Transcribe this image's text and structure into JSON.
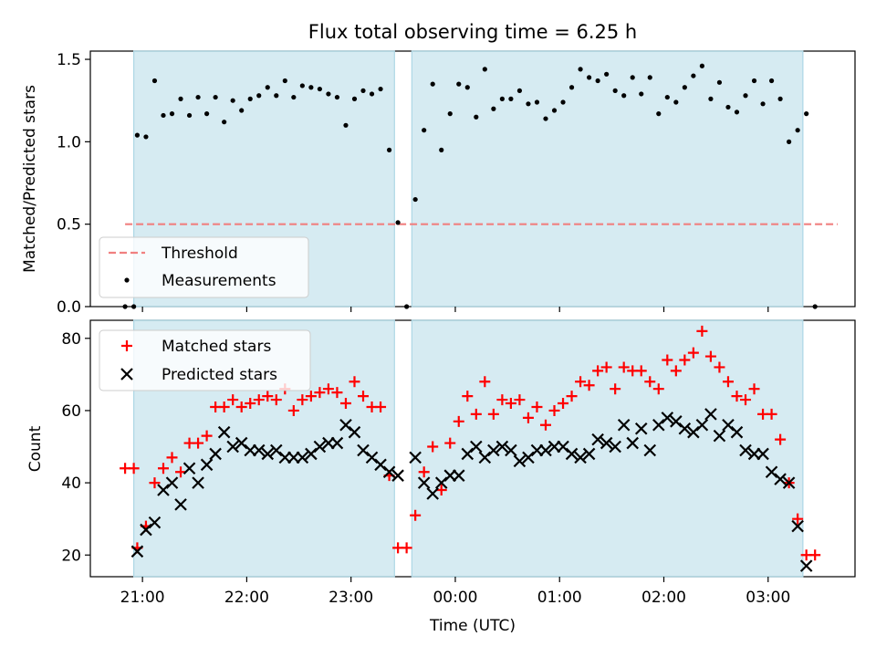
{
  "chart_data": [
    {
      "type": "scatter",
      "title": "Flux total observing time = 6.25 h",
      "ylabel": "Matched/Predicted stars",
      "xlim": [
        "20:30",
        "03:50"
      ],
      "ylim": [
        0,
        1.55
      ],
      "yticks": [
        "0.0",
        "0.5",
        "1.0",
        "1.5"
      ],
      "ytick_values": [
        0,
        0.5,
        1.0,
        1.5
      ],
      "grid": false,
      "legend_position": "lower-left",
      "shaded_spans": [
        [
          "20:55",
          "23:25"
        ],
        [
          "23:35",
          "03:20"
        ]
      ],
      "colors": {
        "shade": "#add8e6",
        "threshold": "#f08080",
        "measurements": "#000000"
      },
      "threshold": {
        "name": "Threshold",
        "value": 0.5,
        "x_range": [
          "20:50",
          "03:40"
        ]
      },
      "series": [
        {
          "name": "Measurements",
          "points": [
            [
              "20:50",
              0
            ],
            [
              "20:55",
              0
            ],
            [
              "20:57",
              1.04
            ],
            [
              "21:02",
              1.03
            ],
            [
              "21:07",
              1.37
            ],
            [
              "21:12",
              1.16
            ],
            [
              "21:17",
              1.17
            ],
            [
              "21:22",
              1.26
            ],
            [
              "21:27",
              1.16
            ],
            [
              "21:32",
              1.27
            ],
            [
              "21:37",
              1.17
            ],
            [
              "21:42",
              1.27
            ],
            [
              "21:47",
              1.12
            ],
            [
              "21:52",
              1.25
            ],
            [
              "21:57",
              1.19
            ],
            [
              "22:02",
              1.26
            ],
            [
              "22:07",
              1.28
            ],
            [
              "22:12",
              1.33
            ],
            [
              "22:17",
              1.28
            ],
            [
              "22:22",
              1.37
            ],
            [
              "22:27",
              1.27
            ],
            [
              "22:32",
              1.34
            ],
            [
              "22:37",
              1.33
            ],
            [
              "22:42",
              1.32
            ],
            [
              "22:47",
              1.29
            ],
            [
              "22:52",
              1.27
            ],
            [
              "22:57",
              1.1
            ],
            [
              "23:02",
              1.26
            ],
            [
              "23:07",
              1.31
            ],
            [
              "23:12",
              1.29
            ],
            [
              "23:17",
              1.32
            ],
            [
              "23:22",
              0.95
            ],
            [
              "23:27",
              0.51
            ],
            [
              "23:32",
              0
            ],
            [
              "23:37",
              0.65
            ],
            [
              "23:42",
              1.07
            ],
            [
              "23:47",
              1.35
            ],
            [
              "23:52",
              0.95
            ],
            [
              "23:57",
              1.17
            ],
            [
              "00:02",
              1.35
            ],
            [
              "00:07",
              1.33
            ],
            [
              "00:12",
              1.15
            ],
            [
              "00:17",
              1.44
            ],
            [
              "00:22",
              1.2
            ],
            [
              "00:27",
              1.26
            ],
            [
              "00:32",
              1.26
            ],
            [
              "00:37",
              1.31
            ],
            [
              "00:42",
              1.23
            ],
            [
              "00:47",
              1.24
            ],
            [
              "00:52",
              1.14
            ],
            [
              "00:57",
              1.19
            ],
            [
              "01:02",
              1.24
            ],
            [
              "01:07",
              1.33
            ],
            [
              "01:12",
              1.44
            ],
            [
              "01:17",
              1.39
            ],
            [
              "01:22",
              1.37
            ],
            [
              "01:27",
              1.41
            ],
            [
              "01:32",
              1.31
            ],
            [
              "01:37",
              1.28
            ],
            [
              "01:42",
              1.39
            ],
            [
              "01:47",
              1.29
            ],
            [
              "01:52",
              1.39
            ],
            [
              "01:57",
              1.17
            ],
            [
              "02:02",
              1.27
            ],
            [
              "02:07",
              1.24
            ],
            [
              "02:12",
              1.33
            ],
            [
              "02:17",
              1.4
            ],
            [
              "02:22",
              1.46
            ],
            [
              "02:27",
              1.26
            ],
            [
              "02:32",
              1.36
            ],
            [
              "02:37",
              1.21
            ],
            [
              "02:42",
              1.18
            ],
            [
              "02:47",
              1.28
            ],
            [
              "02:52",
              1.37
            ],
            [
              "02:57",
              1.23
            ],
            [
              "03:02",
              1.37
            ],
            [
              "03:07",
              1.26
            ],
            [
              "03:12",
              1.0
            ],
            [
              "03:17",
              1.07
            ],
            [
              "03:22",
              1.17
            ],
            [
              "03:27",
              0
            ]
          ]
        }
      ]
    },
    {
      "type": "scatter",
      "xlabel": "Time (UTC)",
      "ylabel": "Count",
      "xlim": [
        "20:30",
        "03:50"
      ],
      "ylim": [
        14,
        85
      ],
      "yticks": [
        "20",
        "40",
        "60",
        "80"
      ],
      "ytick_values": [
        20,
        40,
        60,
        80
      ],
      "xticks": [
        "21:00",
        "22:00",
        "23:00",
        "00:00",
        "01:00",
        "02:00",
        "03:00"
      ],
      "grid": false,
      "legend_position": "upper-left",
      "shaded_spans": [
        [
          "20:55",
          "23:25"
        ],
        [
          "23:35",
          "03:20"
        ]
      ],
      "colors": {
        "shade": "#add8e6",
        "matched": "#ff0000",
        "predicted": "#000000"
      },
      "series": [
        {
          "name": "Matched stars",
          "marker": "plus",
          "points": [
            [
              "20:50",
              44
            ],
            [
              "20:55",
              44
            ],
            [
              "20:57",
              22
            ],
            [
              "21:02",
              28
            ],
            [
              "21:07",
              40
            ],
            [
              "21:12",
              44
            ],
            [
              "21:17",
              47
            ],
            [
              "21:22",
              43
            ],
            [
              "21:27",
              51
            ],
            [
              "21:32",
              51
            ],
            [
              "21:37",
              53
            ],
            [
              "21:42",
              61
            ],
            [
              "21:47",
              61
            ],
            [
              "21:52",
              63
            ],
            [
              "21:57",
              61
            ],
            [
              "22:02",
              62
            ],
            [
              "22:07",
              63
            ],
            [
              "22:12",
              64
            ],
            [
              "22:17",
              63
            ],
            [
              "22:22",
              66
            ],
            [
              "22:27",
              60
            ],
            [
              "22:32",
              63
            ],
            [
              "22:37",
              64
            ],
            [
              "22:42",
              65
            ],
            [
              "22:47",
              66
            ],
            [
              "22:52",
              65
            ],
            [
              "22:57",
              62
            ],
            [
              "23:02",
              68
            ],
            [
              "23:07",
              64
            ],
            [
              "23:12",
              61
            ],
            [
              "23:17",
              61
            ],
            [
              "23:22",
              42
            ],
            [
              "23:27",
              22
            ],
            [
              "23:32",
              22
            ],
            [
              "23:37",
              31
            ],
            [
              "23:42",
              43
            ],
            [
              "23:47",
              50
            ],
            [
              "23:52",
              38
            ],
            [
              "23:57",
              51
            ],
            [
              "00:02",
              57
            ],
            [
              "00:07",
              64
            ],
            [
              "00:12",
              59
            ],
            [
              "00:17",
              68
            ],
            [
              "00:22",
              59
            ],
            [
              "00:27",
              63
            ],
            [
              "00:32",
              62
            ],
            [
              "00:37",
              63
            ],
            [
              "00:42",
              58
            ],
            [
              "00:47",
              61
            ],
            [
              "00:52",
              56
            ],
            [
              "00:57",
              60
            ],
            [
              "01:02",
              62
            ],
            [
              "01:07",
              64
            ],
            [
              "01:12",
              68
            ],
            [
              "01:17",
              67
            ],
            [
              "01:22",
              71
            ],
            [
              "01:27",
              72
            ],
            [
              "01:32",
              66
            ],
            [
              "01:37",
              72
            ],
            [
              "01:42",
              71
            ],
            [
              "01:47",
              71
            ],
            [
              "01:52",
              68
            ],
            [
              "01:57",
              66
            ],
            [
              "02:02",
              74
            ],
            [
              "02:07",
              71
            ],
            [
              "02:12",
              74
            ],
            [
              "02:17",
              76
            ],
            [
              "02:22",
              82
            ],
            [
              "02:27",
              75
            ],
            [
              "02:32",
              72
            ],
            [
              "02:37",
              68
            ],
            [
              "02:42",
              64
            ],
            [
              "02:47",
              63
            ],
            [
              "02:52",
              66
            ],
            [
              "02:57",
              59
            ],
            [
              "03:02",
              59
            ],
            [
              "03:07",
              52
            ],
            [
              "03:12",
              40
            ],
            [
              "03:17",
              30
            ],
            [
              "03:22",
              20
            ],
            [
              "03:27",
              20
            ]
          ]
        },
        {
          "name": "Predicted stars",
          "marker": "x",
          "points": [
            [
              "20:57",
              21
            ],
            [
              "21:02",
              27
            ],
            [
              "21:07",
              29
            ],
            [
              "21:12",
              38
            ],
            [
              "21:17",
              40
            ],
            [
              "21:22",
              34
            ],
            [
              "21:27",
              44
            ],
            [
              "21:32",
              40
            ],
            [
              "21:37",
              45
            ],
            [
              "21:42",
              48
            ],
            [
              "21:47",
              54
            ],
            [
              "21:52",
              50
            ],
            [
              "21:57",
              51
            ],
            [
              "22:02",
              49
            ],
            [
              "22:07",
              49
            ],
            [
              "22:12",
              48
            ],
            [
              "22:17",
              49
            ],
            [
              "22:22",
              47
            ],
            [
              "22:27",
              47
            ],
            [
              "22:32",
              47
            ],
            [
              "22:37",
              48
            ],
            [
              "22:42",
              50
            ],
            [
              "22:47",
              51
            ],
            [
              "22:52",
              51
            ],
            [
              "22:57",
              56
            ],
            [
              "23:02",
              54
            ],
            [
              "23:07",
              49
            ],
            [
              "23:12",
              47
            ],
            [
              "23:17",
              45
            ],
            [
              "23:22",
              43
            ],
            [
              "23:27",
              42
            ],
            [
              "23:37",
              47
            ],
            [
              "23:42",
              40
            ],
            [
              "23:47",
              37
            ],
            [
              "23:52",
              40
            ],
            [
              "23:57",
              42
            ],
            [
              "00:02",
              42
            ],
            [
              "00:07",
              48
            ],
            [
              "00:12",
              50
            ],
            [
              "00:17",
              47
            ],
            [
              "00:22",
              49
            ],
            [
              "00:27",
              50
            ],
            [
              "00:32",
              49
            ],
            [
              "00:37",
              46
            ],
            [
              "00:42",
              47
            ],
            [
              "00:47",
              49
            ],
            [
              "00:52",
              49
            ],
            [
              "00:57",
              50
            ],
            [
              "01:02",
              50
            ],
            [
              "01:07",
              48
            ],
            [
              "01:12",
              47
            ],
            [
              "01:17",
              48
            ],
            [
              "01:22",
              52
            ],
            [
              "01:27",
              51
            ],
            [
              "01:32",
              50
            ],
            [
              "01:37",
              56
            ],
            [
              "01:42",
              51
            ],
            [
              "01:47",
              55
            ],
            [
              "01:52",
              49
            ],
            [
              "01:57",
              56
            ],
            [
              "02:02",
              58
            ],
            [
              "02:07",
              57
            ],
            [
              "02:12",
              55
            ],
            [
              "02:17",
              54
            ],
            [
              "02:22",
              56
            ],
            [
              "02:27",
              59
            ],
            [
              "02:32",
              53
            ],
            [
              "02:37",
              56
            ],
            [
              "02:42",
              54
            ],
            [
              "02:47",
              49
            ],
            [
              "02:52",
              48
            ],
            [
              "02:57",
              48
            ],
            [
              "03:02",
              43
            ],
            [
              "03:07",
              41
            ],
            [
              "03:12",
              40
            ],
            [
              "03:17",
              28
            ],
            [
              "03:22",
              17
            ]
          ]
        }
      ]
    }
  ]
}
